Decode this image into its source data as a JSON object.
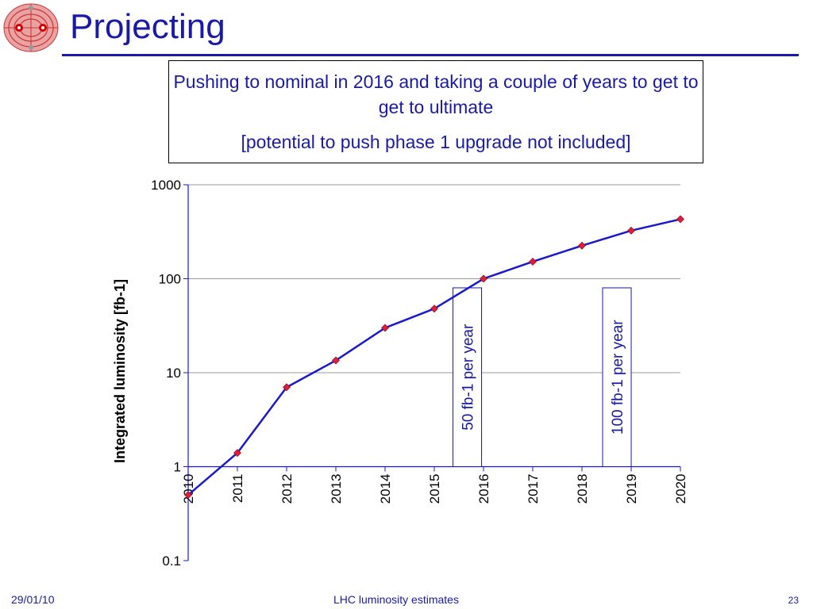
{
  "slide": {
    "title": "Projecting",
    "callout_line1": "Pushing to nominal in 2016 and taking a couple of years to get to get to ultimate",
    "callout_line2": "[potential to push phase 1 upgrade not included]",
    "footer_date": "29/01/10",
    "footer_center": "LHC luminosity estimates",
    "page_number": "23"
  },
  "chart_data": {
    "type": "line",
    "title": "",
    "xlabel": "",
    "ylabel": "Integrated luminosity [fb-1]",
    "y_scale": "log",
    "ylim": [
      0.1,
      1000
    ],
    "y_ticks": [
      "1000",
      "100",
      "10",
      "1",
      "0.1"
    ],
    "categories": [
      "2010",
      "2011",
      "2012",
      "2013",
      "2014",
      "2015",
      "2016",
      "2017",
      "2018",
      "2019",
      "2020"
    ],
    "series": [
      {
        "values": [
          0.5,
          1.4,
          7,
          13.5,
          30,
          48,
          100,
          152,
          225,
          325,
          430
        ]
      }
    ],
    "annotations": [
      "50 fb-1 per year",
      "100 fb-1 per year"
    ],
    "grid": true,
    "colors": {
      "line": "#1a1acc",
      "marker": "#e01e3c",
      "text": "#1a1aa8"
    }
  }
}
